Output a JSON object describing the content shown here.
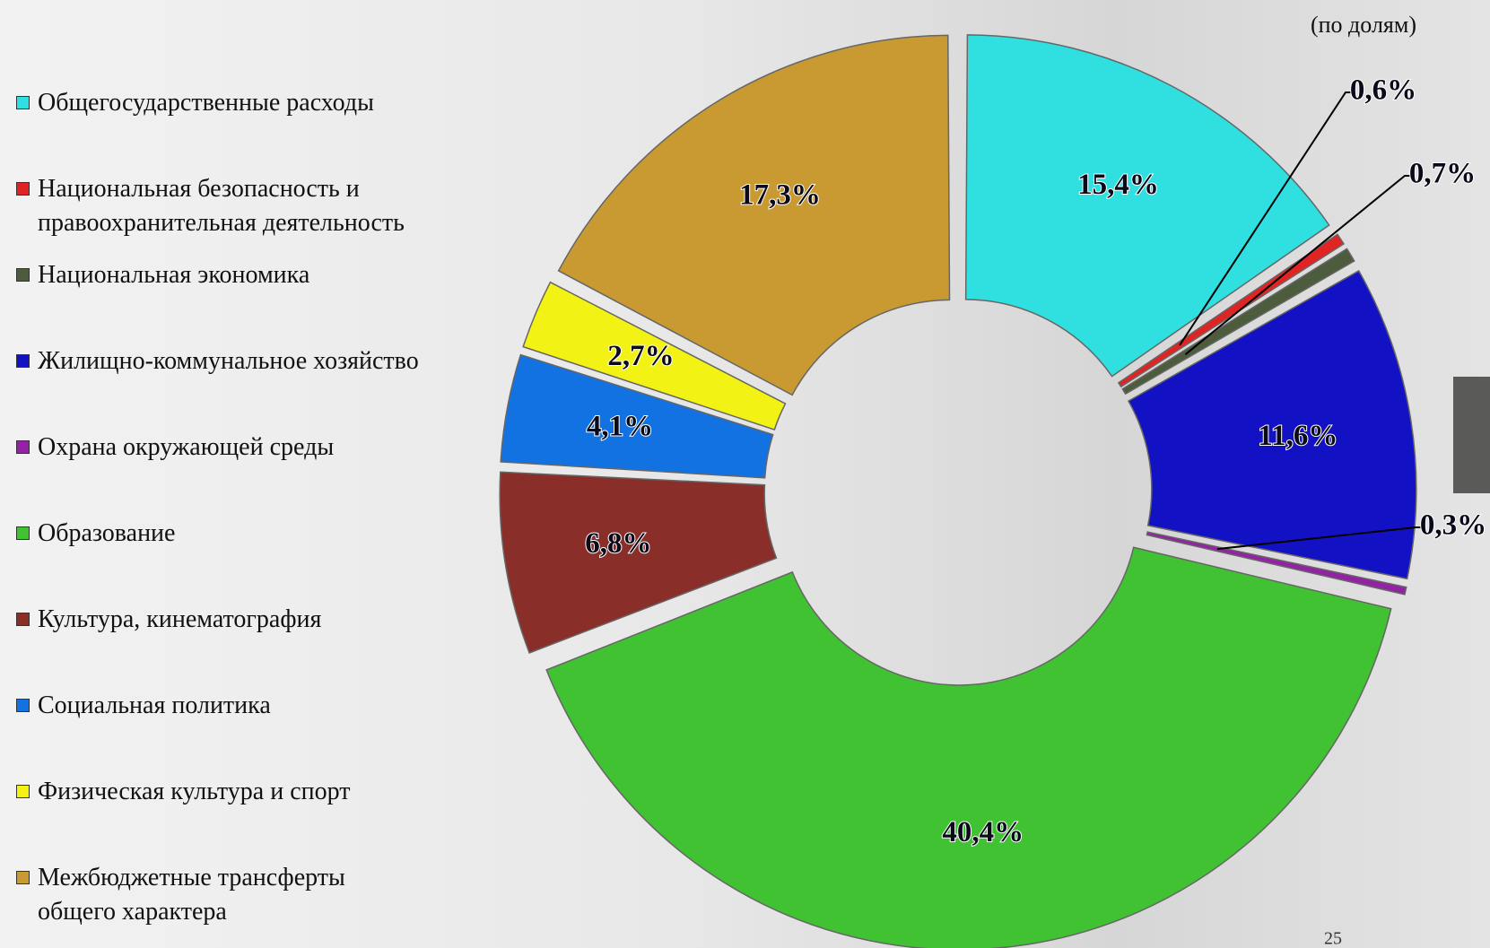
{
  "chart_data": {
    "type": "donut",
    "subtitle": "(по долям)",
    "page_number": "25",
    "categories": [
      "Общегосударственные расходы",
      "Национальная безопасность и правоохранительная деятельность",
      "Национальная экономика",
      "Жилищно-коммунальное хозяйство",
      "Охрана окружающей среды",
      "Образование",
      "Культура, кинематография",
      "Социальная политика",
      "Физическая культура и спорт",
      "Межбюджетные трансферты общего характера"
    ],
    "values": [
      15.4,
      0.6,
      0.7,
      11.6,
      0.3,
      40.4,
      6.8,
      4.1,
      2.7,
      17.3
    ],
    "value_labels": [
      "15,4%",
      "0,6%",
      "0,7%",
      "11,6%",
      "0,3%",
      "40,4%",
      "6,8%",
      "4,1%",
      "2,7%",
      "17,3%"
    ],
    "colors": [
      "#30e0e0",
      "#e02424",
      "#4c5c3c",
      "#1212c4",
      "#9422a4",
      "#40c232",
      "#8a2e2a",
      "#1272e2",
      "#f2f214",
      "#c99a32"
    ]
  }
}
